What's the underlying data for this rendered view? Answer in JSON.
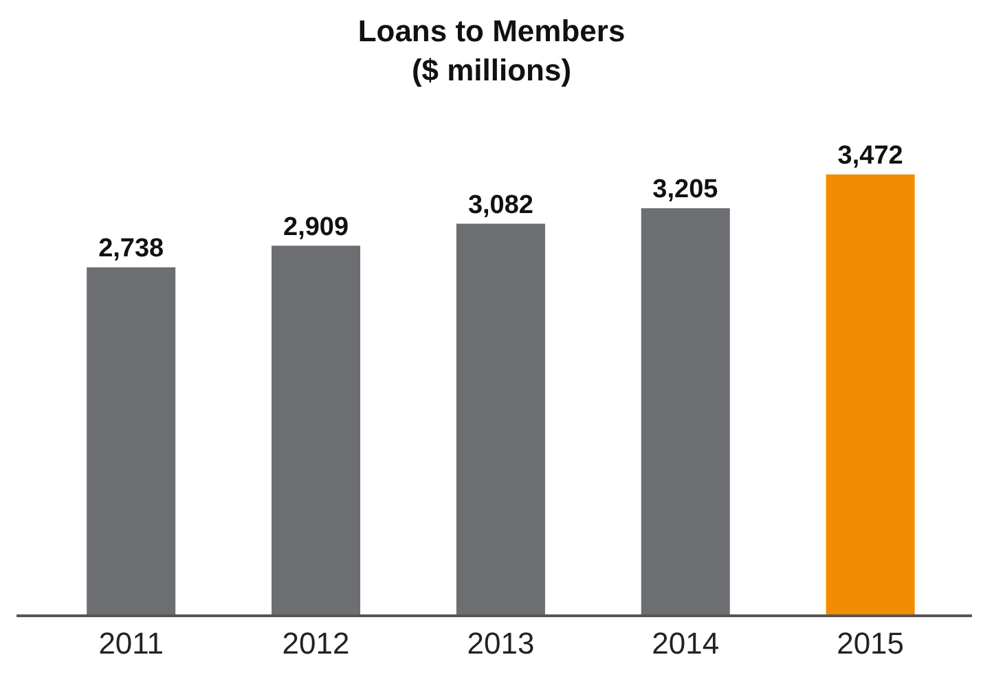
{
  "chart_data": {
    "type": "bar",
    "title": "Loans to Members\n($ millions)",
    "categories": [
      "2011",
      "2012",
      "2013",
      "2014",
      "2015"
    ],
    "values": [
      2738,
      2909,
      3082,
      3205,
      3472
    ],
    "value_labels": [
      "2,738",
      "2,909",
      "3,082",
      "3,205",
      "3,472"
    ],
    "colors": [
      "#6d6e71",
      "#6d6e71",
      "#6d6e71",
      "#6d6e71",
      "#f28c00"
    ],
    "tick_labels": "x"
  }
}
